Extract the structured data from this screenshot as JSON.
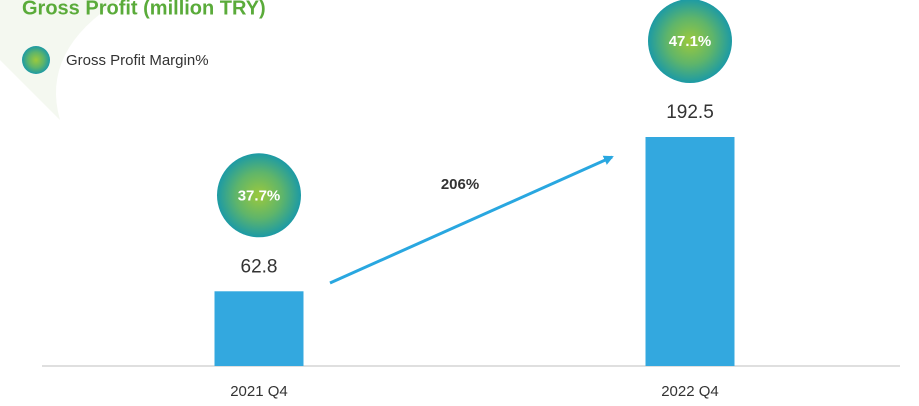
{
  "chart_data": {
    "type": "bar",
    "title": "Gross Profit (million TRY)",
    "categories": [
      "2021 Q4",
      "2022 Q4"
    ],
    "values": [
      62.8,
      192.5
    ],
    "color": "#33a8df",
    "margin": {
      "name": "Gross Profit Margin%",
      "values": [
        37.7,
        47.1
      ],
      "value_labels": [
        "37.7%",
        "47.1%"
      ]
    },
    "annotation": "206%"
  }
}
